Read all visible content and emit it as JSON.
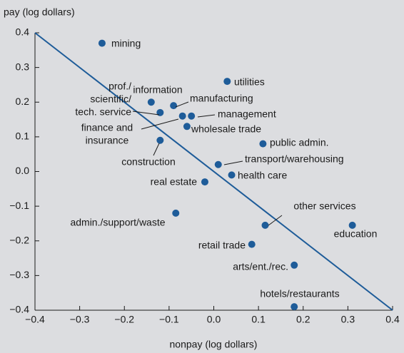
{
  "chart_data": {
    "type": "scatter",
    "x_label": "nonpay (log dollars)",
    "y_label": "pay (log dollars)",
    "xlim": [
      -0.4,
      0.4
    ],
    "ylim": [
      -0.4,
      0.4
    ],
    "xticks": [
      {
        "value": -0.4,
        "label": "−0.4"
      },
      {
        "value": -0.3,
        "label": "−0.3"
      },
      {
        "value": -0.2,
        "label": "−0.2"
      },
      {
        "value": -0.1,
        "label": "−0.1"
      },
      {
        "value": 0,
        "label": "0.0"
      },
      0.1,
      0.2,
      0.3,
      0.4
    ],
    "yticks": [
      {
        "value": -0.4,
        "label": "−0.4"
      },
      {
        "value": -0.3,
        "label": "−0.3"
      },
      {
        "value": -0.2,
        "label": "−0.2"
      },
      {
        "value": -0.1,
        "label": "−0.1"
      },
      {
        "value": 0,
        "label": "0.0"
      },
      0.1,
      0.2,
      0.3,
      0.4
    ],
    "color": "#1e5c99",
    "labels": [
      [
        "mining"
      ],
      [
        "utilities"
      ],
      [
        "information"
      ],
      [
        "manufacturing"
      ],
      [
        "prof./",
        "scientific/",
        "tech. service"
      ],
      [
        "finance and",
        "insurance"
      ],
      [
        "management"
      ],
      [
        "wholesale trade"
      ],
      [
        "construction"
      ],
      [
        "public admin."
      ],
      [
        "transport/warehousing"
      ],
      [
        "health care"
      ],
      [
        "real estate"
      ],
      [
        "admin./support/waste"
      ],
      [
        "other services"
      ],
      [
        "education"
      ],
      [
        "retail trade"
      ],
      [
        "arts/ent./rec."
      ],
      [
        "hotels/restaurants"
      ]
    ],
    "x": [
      -0.25,
      0.03,
      -0.14,
      -0.09,
      -0.12,
      -0.07,
      -0.05,
      -0.06,
      -0.12,
      0.11,
      0.01,
      0.04,
      -0.02,
      -0.085,
      0.115,
      0.31,
      0.085,
      0.18,
      0.18
    ],
    "y": [
      0.37,
      0.26,
      0.2,
      0.19,
      0.17,
      0.16,
      0.16,
      0.13,
      0.09,
      0.08,
      0.02,
      -0.01,
      -0.03,
      -0.12,
      -0.155,
      -0.155,
      -0.21,
      -0.27,
      -0.39
    ],
    "reference_line": {
      "x": [
        -0.4,
        0.4
      ],
      "y": [
        0.4,
        -0.4
      ]
    }
  }
}
